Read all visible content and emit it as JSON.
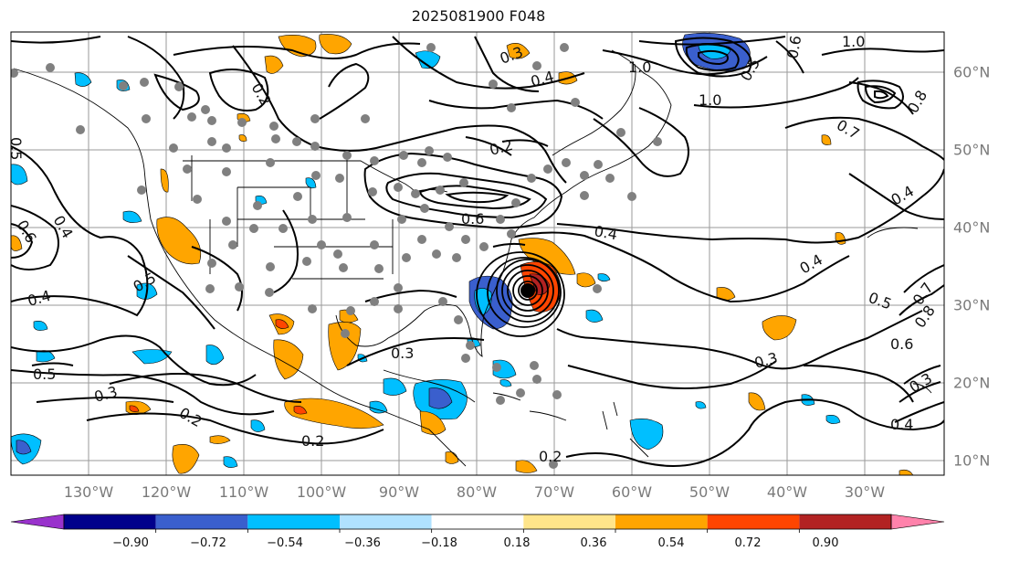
{
  "title": "2025081900 F048",
  "lon_labels": [
    "130°W",
    "120°W",
    "110°W",
    "100°W",
    "90°W",
    "80°W",
    "70°W",
    "60°W",
    "50°W",
    "40°W",
    "30°W"
  ],
  "lat_labels": [
    "60°N",
    "50°N",
    "40°N",
    "30°N",
    "20°N",
    "10°N"
  ],
  "contour_labels": [
    "1.0",
    "1.0",
    "1.0",
    "0.8",
    "0.8",
    "0.7",
    "0.7",
    "0.6",
    "0.6",
    "0.6",
    "0.5",
    "0.5",
    "0.5",
    "0.5",
    "0.4",
    "0.4",
    "0.4",
    "0.4",
    "0.4",
    "0.4",
    "0.4",
    "0.3",
    "0.3",
    "0.3",
    "0.3",
    "0.3",
    "0.2",
    "0.2",
    "0.2",
    "0.2",
    "0.2",
    "0.6",
    "0.5"
  ],
  "colorbar": {
    "colors": [
      "#9932cc",
      "#00008b",
      "#3a5fcd",
      "#00bfff",
      "#b0e2ff",
      "#ffffff",
      "#ffe58a",
      "#ffa500",
      "#ff4500",
      "#b22222",
      "#ff82ab"
    ],
    "ticks": [
      "−0.90",
      "−0.72",
      "−0.54",
      "−0.36",
      "−0.18",
      "0.18",
      "0.36",
      "0.54",
      "0.72",
      "0.90"
    ]
  }
}
